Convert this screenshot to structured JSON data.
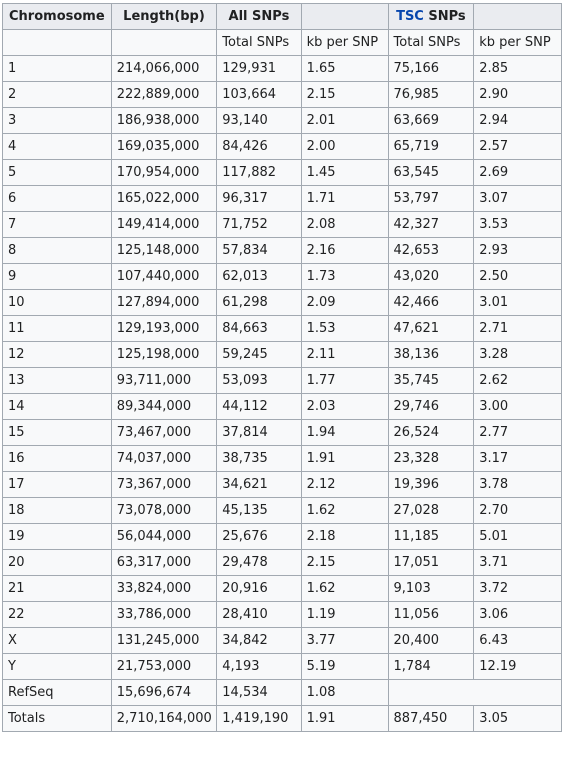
{
  "headers": {
    "chromosome": "Chromosome",
    "length": "Length(bp)",
    "all_snps": "All SNPs",
    "tsc_link": "TSC",
    "tsc_suffix": " SNPs"
  },
  "subheaders": {
    "all_total": "Total SNPs",
    "all_kb": "kb per SNP",
    "tsc_total": "Total SNPs",
    "tsc_kb": "kb per SNP"
  },
  "rows": [
    {
      "chromosome": "1",
      "length": "214,066,000",
      "all_total": "129,931",
      "all_kb": "1.65",
      "tsc_total": "75,166",
      "tsc_kb": "2.85"
    },
    {
      "chromosome": "2",
      "length": "222,889,000",
      "all_total": "103,664",
      "all_kb": "2.15",
      "tsc_total": "76,985",
      "tsc_kb": "2.90"
    },
    {
      "chromosome": "3",
      "length": "186,938,000",
      "all_total": "93,140",
      "all_kb": "2.01",
      "tsc_total": "63,669",
      "tsc_kb": "2.94"
    },
    {
      "chromosome": "4",
      "length": "169,035,000",
      "all_total": "84,426",
      "all_kb": "2.00",
      "tsc_total": "65,719",
      "tsc_kb": "2.57"
    },
    {
      "chromosome": "5",
      "length": "170,954,000",
      "all_total": "117,882",
      "all_kb": "1.45",
      "tsc_total": "63,545",
      "tsc_kb": "2.69"
    },
    {
      "chromosome": "6",
      "length": "165,022,000",
      "all_total": "96,317",
      "all_kb": "1.71",
      "tsc_total": "53,797",
      "tsc_kb": "3.07"
    },
    {
      "chromosome": "7",
      "length": "149,414,000",
      "all_total": "71,752",
      "all_kb": "2.08",
      "tsc_total": "42,327",
      "tsc_kb": "3.53"
    },
    {
      "chromosome": "8",
      "length": "125,148,000",
      "all_total": "57,834",
      "all_kb": "2.16",
      "tsc_total": "42,653",
      "tsc_kb": "2.93"
    },
    {
      "chromosome": "9",
      "length": "107,440,000",
      "all_total": "62,013",
      "all_kb": "1.73",
      "tsc_total": "43,020",
      "tsc_kb": "2.50"
    },
    {
      "chromosome": "10",
      "length": "127,894,000",
      "all_total": "61,298",
      "all_kb": "2.09",
      "tsc_total": "42,466",
      "tsc_kb": "3.01"
    },
    {
      "chromosome": "11",
      "length": "129,193,000",
      "all_total": "84,663",
      "all_kb": "1.53",
      "tsc_total": "47,621",
      "tsc_kb": "2.71"
    },
    {
      "chromosome": "12",
      "length": "125,198,000",
      "all_total": "59,245",
      "all_kb": "2.11",
      "tsc_total": "38,136",
      "tsc_kb": "3.28"
    },
    {
      "chromosome": "13",
      "length": "93,711,000",
      "all_total": "53,093",
      "all_kb": "1.77",
      "tsc_total": "35,745",
      "tsc_kb": "2.62"
    },
    {
      "chromosome": "14",
      "length": "89,344,000",
      "all_total": "44,112",
      "all_kb": "2.03",
      "tsc_total": "29,746",
      "tsc_kb": "3.00"
    },
    {
      "chromosome": "15",
      "length": "73,467,000",
      "all_total": "37,814",
      "all_kb": "1.94",
      "tsc_total": "26,524",
      "tsc_kb": "2.77"
    },
    {
      "chromosome": "16",
      "length": "74,037,000",
      "all_total": "38,735",
      "all_kb": "1.91",
      "tsc_total": "23,328",
      "tsc_kb": "3.17"
    },
    {
      "chromosome": "17",
      "length": "73,367,000",
      "all_total": "34,621",
      "all_kb": "2.12",
      "tsc_total": "19,396",
      "tsc_kb": "3.78"
    },
    {
      "chromosome": "18",
      "length": "73,078,000",
      "all_total": "45,135",
      "all_kb": "1.62",
      "tsc_total": "27,028",
      "tsc_kb": "2.70"
    },
    {
      "chromosome": "19",
      "length": "56,044,000",
      "all_total": "25,676",
      "all_kb": "2.18",
      "tsc_total": "11,185",
      "tsc_kb": "5.01"
    },
    {
      "chromosome": "20",
      "length": "63,317,000",
      "all_total": "29,478",
      "all_kb": "2.15",
      "tsc_total": "17,051",
      "tsc_kb": "3.71"
    },
    {
      "chromosome": "21",
      "length": "33,824,000",
      "all_total": "20,916",
      "all_kb": "1.62",
      "tsc_total": "9,103",
      "tsc_kb": "3.72"
    },
    {
      "chromosome": "22",
      "length": "33,786,000",
      "all_total": "28,410",
      "all_kb": "1.19",
      "tsc_total": "11,056",
      "tsc_kb": "3.06"
    },
    {
      "chromosome": "X",
      "length": "131,245,000",
      "all_total": "34,842",
      "all_kb": "3.77",
      "tsc_total": "20,400",
      "tsc_kb": "6.43"
    },
    {
      "chromosome": "Y",
      "length": "21,753,000",
      "all_total": "4,193",
      "all_kb": "5.19",
      "tsc_total": "1,784",
      "tsc_kb": "12.19"
    }
  ],
  "refseq": {
    "chromosome": "RefSeq",
    "length": "15,696,674",
    "all_total": "14,534",
    "all_kb": "1.08"
  },
  "totals": {
    "chromosome": "Totals",
    "length": "2,710,164,000",
    "all_total": "1,419,190",
    "all_kb": "1.91",
    "tsc_total": "887,450",
    "tsc_kb": "3.05"
  },
  "colors": {
    "link": "#0645ad",
    "header_bg": "#eaecf0",
    "cell_bg": "#f8f9fa",
    "border": "#a2a9b1",
    "text": "#202122"
  }
}
